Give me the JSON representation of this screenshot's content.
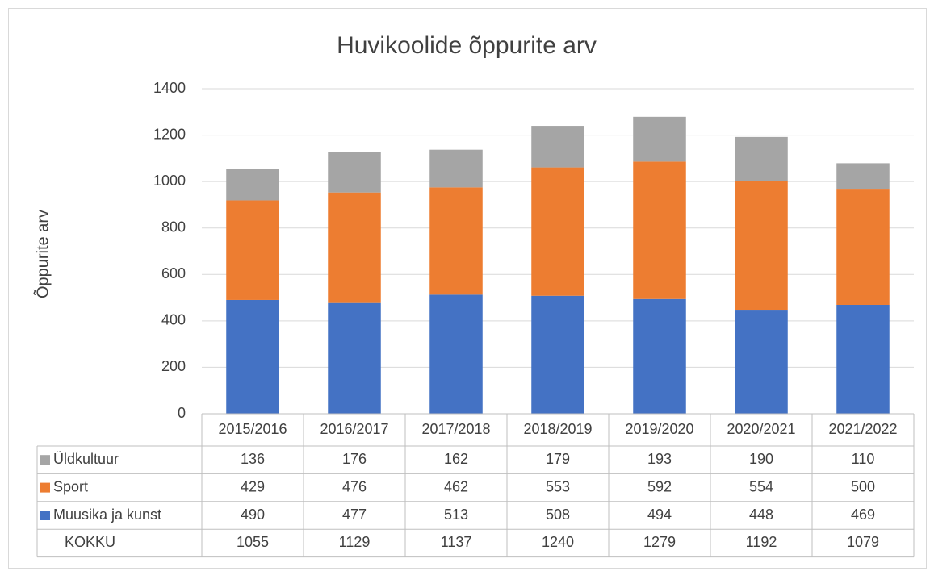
{
  "chart_data": {
    "type": "bar",
    "stacked": true,
    "title": "Huvikoolide õppurite arv",
    "y_label": "Õppurite arv",
    "categories": [
      "2015/2016",
      "2016/2017",
      "2017/2018",
      "2018/2019",
      "2019/2020",
      "2020/2021",
      "2021/2022"
    ],
    "series": [
      {
        "name": "Muusika ja kunst",
        "color": "#4472c4",
        "values": [
          490,
          477,
          513,
          508,
          494,
          448,
          469
        ]
      },
      {
        "name": "Sport",
        "color": "#ed7d31",
        "values": [
          429,
          476,
          462,
          553,
          592,
          554,
          500
        ]
      },
      {
        "name": "Üldkultuur",
        "color": "#a5a5a5",
        "values": [
          136,
          176,
          162,
          179,
          193,
          190,
          110
        ]
      }
    ],
    "totals": {
      "name": "KOKKU",
      "values": [
        1055,
        1129,
        1137,
        1240,
        1279,
        1192,
        1079
      ]
    },
    "ylim": [
      0,
      1400
    ],
    "yticks": [
      0,
      200,
      400,
      600,
      800,
      1000,
      1200,
      1400
    ],
    "grid": true
  }
}
